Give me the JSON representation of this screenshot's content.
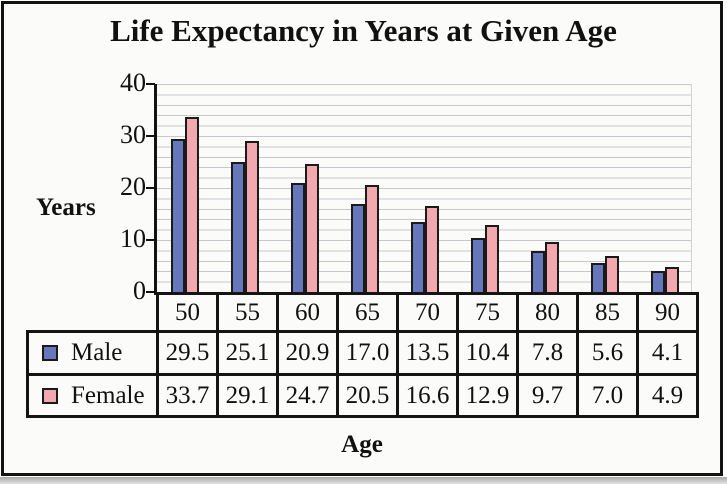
{
  "chart_data": {
    "type": "bar",
    "title": "Life Expectancy in Years at Given Age",
    "categories": [
      "50",
      "55",
      "60",
      "65",
      "70",
      "75",
      "80",
      "85",
      "90"
    ],
    "series": [
      {
        "name": "Male",
        "color": "#6678bb",
        "values": [
          29.5,
          25.1,
          20.9,
          17.0,
          13.5,
          10.4,
          7.8,
          5.6,
          4.1
        ]
      },
      {
        "name": "Female",
        "color": "#f3a7ae",
        "values": [
          33.7,
          29.1,
          24.7,
          20.5,
          16.6,
          12.9,
          9.7,
          7.0,
          4.9
        ]
      }
    ],
    "xlabel": "Age",
    "ylabel": "Years",
    "ylim": [
      0,
      40
    ],
    "y_ticks": [
      40,
      30,
      20,
      10,
      0
    ],
    "grid": {
      "visible": true,
      "horizontal_interval": 2
    },
    "legend_position": "first column of data table below chart",
    "value_format": "one decimal place"
  },
  "colors": {
    "male_bar": "#6678bb",
    "female_bar": "#f3a7ae",
    "bar_outline": "#1a1a1a",
    "gridline": "#c6c9cc",
    "frame_border": "#121212",
    "background": "#fbfbfa"
  }
}
